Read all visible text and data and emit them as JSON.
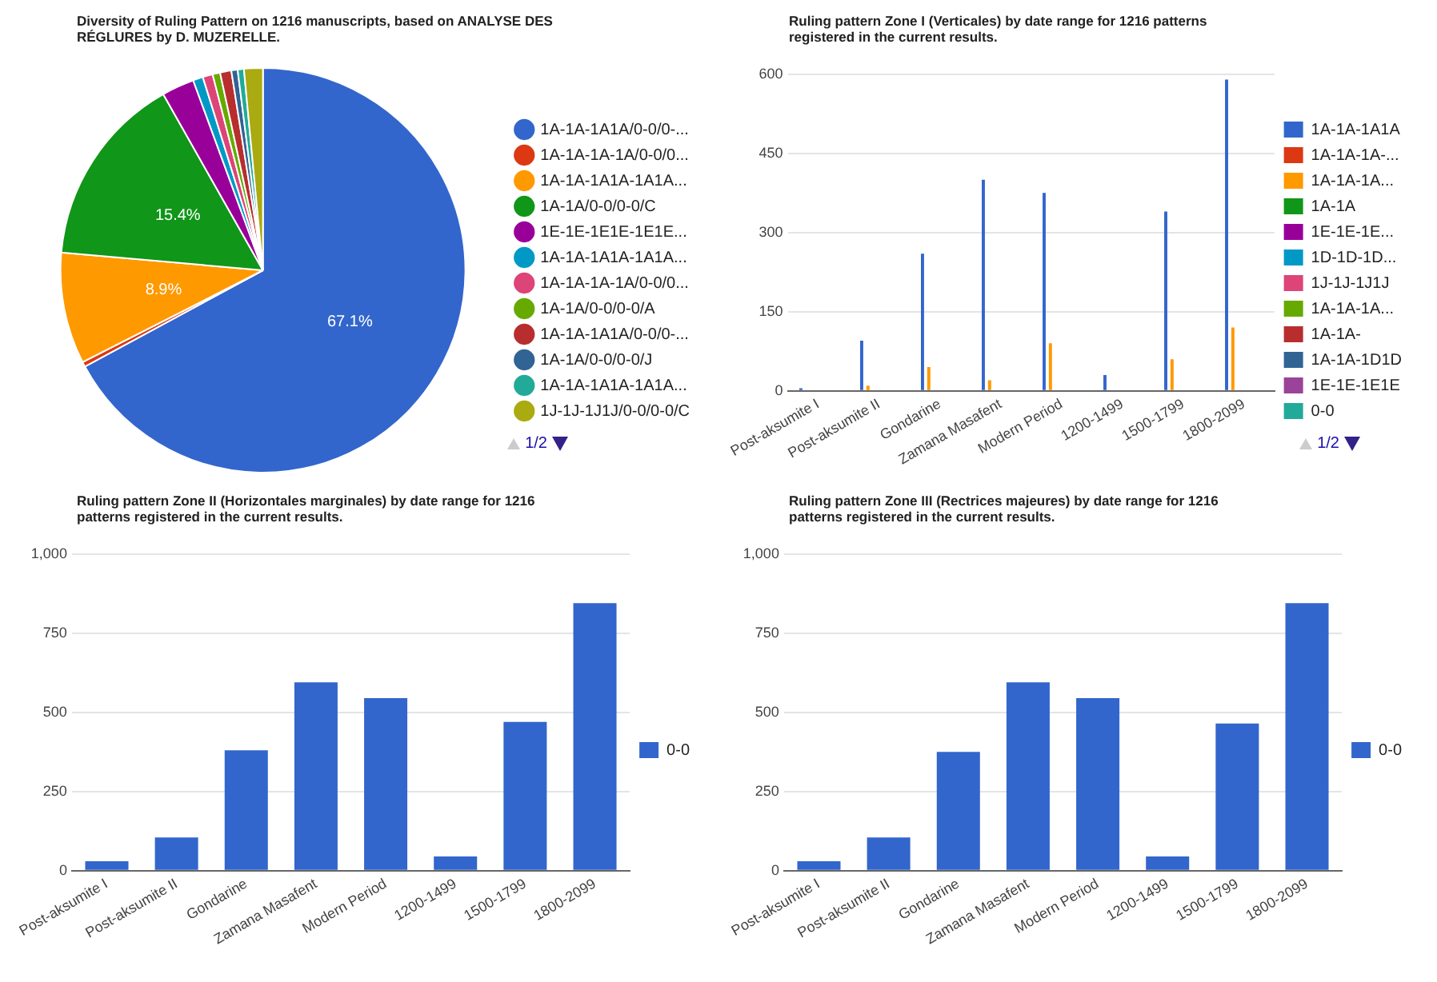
{
  "chart_data": [
    {
      "type": "pie",
      "title": "Diversity of Ruling Pattern on 1216 manuscripts, based on ANALYSE DES RÉGLURES by D. MUZERELLE.",
      "categories": [
        "1A-1A-1A1A/0-0/0-...",
        "1A-1A-1A-1A/0-0/0...",
        "1A-1A-1A1A-1A1A...",
        "1A-1A/0-0/0-0/C",
        "1E-1E-1E1E-1E1E...",
        "1A-1A-1A1A-1A1A...",
        "1A-1A-1A-1A/0-0/0...",
        "1A-1A/0-0/0-0/A",
        "1A-1A-1A1A/0-0/0-...",
        "1A-1A/0-0/0-0/J",
        "1A-1A-1A1A-1A1A...",
        "1J-1J-1J1J/0-0/0-0/C"
      ],
      "values": [
        67.1,
        0.4,
        8.9,
        15.4,
        2.6,
        0.8,
        0.8,
        0.6,
        0.9,
        0.5,
        0.5,
        1.5
      ],
      "colors": [
        "#3366cc",
        "#dc3912",
        "#ff9900",
        "#109618",
        "#990099",
        "#0099c6",
        "#dd4477",
        "#66aa00",
        "#b82e2e",
        "#316395",
        "#22aa99",
        "#aaaa11"
      ],
      "value_labels": [
        "67.1%",
        null,
        "8.9%",
        "15.4%",
        null,
        null,
        null,
        null,
        null,
        null,
        null,
        null
      ],
      "legend": "right",
      "annotations": [
        "1/2"
      ]
    },
    {
      "type": "bar",
      "title": "Ruling pattern Zone I (Verticales) by date range for 1216 patterns registered in the current results.",
      "categories": [
        "Post-aksumite I",
        "Post-aksumite II",
        "Gondarine",
        "Zamana Masafent",
        "Modern Period",
        "1200-1499",
        "1500-1799",
        "1800-2099"
      ],
      "series": [
        {
          "name": "1A-1A-1A1A",
          "color": "#3366cc",
          "values": [
            5,
            95,
            260,
            400,
            375,
            30,
            340,
            590
          ]
        },
        {
          "name": "1A-1A-1A-...",
          "color": "#dc3912",
          "values": [
            null,
            null,
            null,
            null,
            null,
            null,
            null,
            null
          ]
        },
        {
          "name": "1A-1A-1A...",
          "color": "#ff9900",
          "values": [
            null,
            10,
            45,
            20,
            90,
            null,
            60,
            120
          ]
        },
        {
          "name": "1A-1A",
          "color": "#109618",
          "values": [
            null,
            null,
            null,
            null,
            null,
            null,
            null,
            null
          ]
        },
        {
          "name": "1E-1E-1E...",
          "color": "#990099",
          "values": [
            null,
            null,
            null,
            null,
            null,
            null,
            null,
            null
          ]
        },
        {
          "name": "1D-1D-1D...",
          "color": "#0099c6",
          "values": [
            null,
            null,
            null,
            null,
            null,
            null,
            null,
            null
          ]
        },
        {
          "name": "1J-1J-1J1J",
          "color": "#dd4477",
          "values": [
            null,
            null,
            null,
            null,
            null,
            null,
            null,
            null
          ]
        },
        {
          "name": "1A-1A-1A...",
          "color": "#66aa00",
          "values": [
            null,
            null,
            null,
            null,
            null,
            null,
            null,
            null
          ]
        },
        {
          "name": "1A-1A-",
          "color": "#b82e2e",
          "values": [
            null,
            null,
            null,
            null,
            null,
            null,
            null,
            null
          ]
        },
        {
          "name": "1A-1A-1D1D",
          "color": "#316395",
          "values": [
            null,
            null,
            null,
            null,
            null,
            null,
            null,
            null
          ]
        },
        {
          "name": "1E-1E-1E1E",
          "color": "#994499",
          "values": [
            null,
            null,
            null,
            null,
            null,
            null,
            null,
            null
          ]
        },
        {
          "name": "0-0",
          "color": "#22aa99",
          "values": [
            null,
            null,
            null,
            null,
            null,
            null,
            null,
            null
          ]
        }
      ],
      "ylim": [
        0,
        600
      ],
      "yticks": [
        0,
        150,
        300,
        450,
        600
      ],
      "grid": "y",
      "legend": "right",
      "annotations": [
        "1/2"
      ]
    },
    {
      "type": "bar",
      "title": "Ruling pattern Zone II (Horizontales marginales) by date range for 1216 patterns registered in the current results.",
      "categories": [
        "Post-aksumite I",
        "Post-aksumite II",
        "Gondarine",
        "Zamana Masafent",
        "Modern Period",
        "1200-1499",
        "1500-1799",
        "1800-2099"
      ],
      "series": [
        {
          "name": "0-0",
          "color": "#3366cc",
          "values": [
            30,
            105,
            380,
            595,
            545,
            45,
            470,
            845
          ]
        }
      ],
      "ylim": [
        0,
        1000
      ],
      "yticks": [
        0,
        250,
        500,
        750,
        {
          "value": 1000,
          "label": "1,000"
        }
      ],
      "grid": "y",
      "legend": "right"
    },
    {
      "type": "bar",
      "title": "Ruling pattern Zone III (Rectrices majeures) by date range for 1216 patterns registered in the current results.",
      "categories": [
        "Post-aksumite I",
        "Post-aksumite II",
        "Gondarine",
        "Zamana Masafent",
        "Modern Period",
        "1200-1499",
        "1500-1799",
        "1800-2099"
      ],
      "series": [
        {
          "name": "0-0",
          "color": "#3366cc",
          "values": [
            30,
            105,
            375,
            595,
            545,
            45,
            465,
            845
          ]
        }
      ],
      "ylim": [
        0,
        1000
      ],
      "yticks": [
        0,
        250,
        500,
        750,
        {
          "value": 1000,
          "label": "1,000"
        }
      ],
      "grid": "y",
      "legend": "right"
    }
  ]
}
